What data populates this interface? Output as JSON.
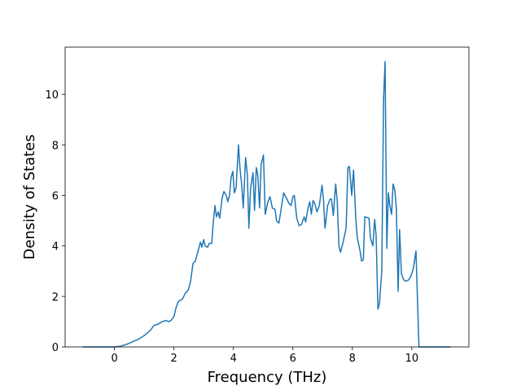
{
  "chart_data": {
    "type": "line",
    "xlabel": "Frequency (THz)",
    "ylabel": "Density of States",
    "xlim": [
      -1.66,
      11.92
    ],
    "ylim": [
      0,
      11.87
    ],
    "xticks": [
      0,
      2,
      4,
      6,
      8,
      10
    ],
    "yticks": [
      0,
      2,
      4,
      6,
      8,
      10
    ],
    "x": [
      -1.06,
      0,
      0.2,
      0.4,
      0.6,
      0.8,
      1.0,
      1.2,
      1.33,
      1.47,
      1.6,
      1.74,
      1.82,
      1.9,
      2.0,
      2.07,
      2.15,
      2.29,
      2.37,
      2.48,
      2.56,
      2.64,
      2.72,
      2.8,
      2.89,
      2.94,
      3.0,
      3.05,
      3.13,
      3.19,
      3.27,
      3.32,
      3.38,
      3.43,
      3.49,
      3.54,
      3.62,
      3.68,
      3.76,
      3.81,
      3.87,
      3.92,
      3.98,
      4.03,
      4.09,
      4.17,
      4.22,
      4.28,
      4.33,
      4.41,
      4.47,
      4.52,
      4.58,
      4.66,
      4.71,
      4.77,
      4.82,
      4.88,
      4.93,
      5.01,
      5.07,
      5.15,
      5.23,
      5.31,
      5.4,
      5.45,
      5.53,
      5.61,
      5.69,
      5.78,
      5.86,
      5.94,
      6.0,
      6.05,
      6.13,
      6.21,
      6.29,
      6.38,
      6.43,
      6.51,
      6.57,
      6.62,
      6.68,
      6.73,
      6.81,
      6.89,
      6.98,
      7.03,
      7.08,
      7.17,
      7.25,
      7.3,
      7.36,
      7.44,
      7.49,
      7.55,
      7.6,
      7.68,
      7.79,
      7.85,
      7.9,
      7.98,
      8.04,
      8.12,
      8.17,
      8.26,
      8.31,
      8.37,
      8.42,
      8.56,
      8.61,
      8.69,
      8.75,
      8.8,
      8.86,
      8.91,
      8.99,
      9.05,
      9.1,
      9.16,
      9.21,
      9.26,
      9.32,
      9.37,
      9.43,
      9.48,
      9.54,
      9.59,
      9.65,
      9.73,
      9.81,
      9.89,
      9.97,
      10.05,
      10.14,
      10.24,
      11.3
    ],
    "series": [
      {
        "color": "#1f77b4",
        "values": [
          0,
          0,
          0.03,
          0.1,
          0.2,
          0.3,
          0.45,
          0.65,
          0.85,
          0.9,
          1.0,
          1.05,
          1.0,
          1.05,
          1.2,
          1.55,
          1.8,
          1.9,
          2.1,
          2.25,
          2.6,
          3.3,
          3.4,
          3.75,
          4.15,
          3.95,
          4.25,
          4.0,
          3.95,
          4.1,
          4.1,
          4.9,
          5.6,
          5.15,
          5.35,
          5.1,
          5.9,
          6.15,
          6.0,
          5.75,
          6.0,
          6.7,
          6.95,
          6.1,
          6.3,
          8.0,
          7.1,
          6.4,
          5.5,
          7.5,
          6.8,
          4.7,
          6.3,
          6.9,
          5.4,
          7.1,
          6.8,
          5.5,
          7.2,
          7.6,
          5.25,
          5.7,
          5.95,
          5.5,
          5.45,
          5.0,
          4.9,
          5.5,
          6.1,
          5.9,
          5.7,
          5.6,
          5.95,
          6.0,
          5.1,
          4.8,
          4.85,
          5.15,
          4.95,
          5.5,
          5.75,
          5.25,
          5.8,
          5.7,
          5.35,
          5.6,
          6.4,
          5.8,
          4.7,
          5.6,
          5.85,
          5.85,
          5.2,
          6.45,
          5.8,
          4.0,
          3.75,
          4.1,
          4.7,
          7.1,
          7.15,
          6.0,
          7.0,
          5.0,
          4.3,
          3.8,
          3.4,
          3.45,
          5.15,
          5.1,
          4.3,
          4.0,
          5.05,
          4.4,
          1.5,
          1.7,
          3.0,
          9.8,
          11.3,
          3.9,
          6.1,
          5.6,
          5.25,
          6.45,
          6.2,
          5.5,
          2.2,
          4.65,
          2.9,
          2.65,
          2.6,
          2.65,
          2.8,
          3.1,
          3.8,
          0,
          0
        ]
      }
    ]
  }
}
